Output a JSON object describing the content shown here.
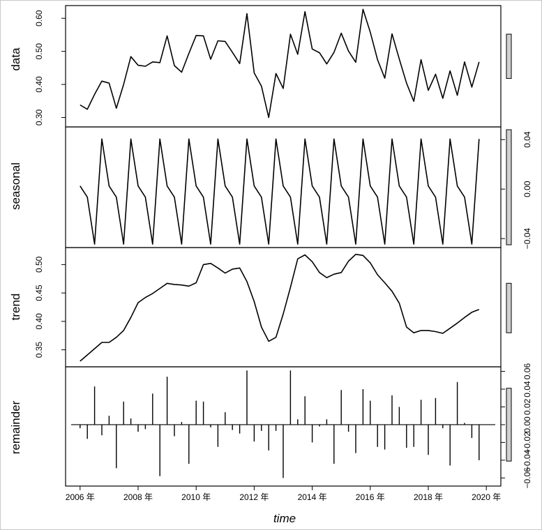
{
  "chart_data": {
    "type": "line",
    "xlabel": "time",
    "x_ticks": [
      "2006 年",
      "2008 年",
      "2010 年",
      "2012 年",
      "2014 年",
      "2016 年",
      "2018 年",
      "2020 年"
    ],
    "x_tick_values": [
      2006,
      2008,
      2010,
      2012,
      2014,
      2016,
      2018,
      2020
    ],
    "xlim": [
      2005.5,
      2020.5
    ],
    "t_start": 2006.0,
    "t_step": 0.25,
    "panels": [
      {
        "name": "data",
        "tick_side": "left",
        "ylim": [
          0.28,
          0.63
        ],
        "ticks": [
          0.3,
          0.4,
          0.5,
          0.6
        ],
        "tick_labels": [
          "0.30",
          "0.40",
          "0.50",
          "0.60"
        ],
        "style": "line",
        "values": [
          0.338,
          0.325,
          0.37,
          0.41,
          0.404,
          0.328,
          0.4,
          0.484,
          0.458,
          0.455,
          0.468,
          0.466,
          0.547,
          0.457,
          0.437,
          0.494,
          0.548,
          0.547,
          0.476,
          0.532,
          0.53,
          0.497,
          0.463,
          0.614,
          0.435,
          0.395,
          0.3,
          0.433,
          0.388,
          0.552,
          0.491,
          0.62,
          0.507,
          0.496,
          0.462,
          0.497,
          0.555,
          0.501,
          0.467,
          0.627,
          0.558,
          0.475,
          0.419,
          0.553,
          0.477,
          0.404,
          0.349,
          0.475,
          0.382,
          0.431,
          0.358,
          0.441,
          0.367,
          0.468,
          0.392,
          0.468
        ]
      },
      {
        "name": "seasonal",
        "tick_side": "right",
        "ylim": [
          -0.045,
          0.048
        ],
        "ticks": [
          -0.04,
          0.0,
          0.04
        ],
        "tick_labels": [
          "−0.04",
          "0.00",
          "0.04"
        ],
        "style": "line",
        "pattern": [
          0.0025,
          -0.0065,
          -0.0445,
          0.0405
        ],
        "values": []
      },
      {
        "name": "trend",
        "tick_side": "left",
        "ylim": [
          0.325,
          0.525
        ],
        "ticks": [
          0.35,
          0.4,
          0.45,
          0.5
        ],
        "tick_labels": [
          "0.35",
          "0.40",
          "0.45",
          "0.50"
        ],
        "style": "line",
        "values": [
          0.33,
          0.341,
          0.352,
          0.363,
          0.363,
          0.372,
          0.384,
          0.407,
          0.433,
          0.442,
          0.449,
          0.458,
          0.467,
          0.465,
          0.464,
          0.462,
          0.468,
          0.5,
          0.502,
          0.494,
          0.485,
          0.492,
          0.494,
          0.47,
          0.435,
          0.39,
          0.365,
          0.372,
          0.413,
          0.46,
          0.51,
          0.517,
          0.505,
          0.486,
          0.477,
          0.483,
          0.486,
          0.506,
          0.518,
          0.516,
          0.503,
          0.482,
          0.468,
          0.453,
          0.432,
          0.39,
          0.38,
          0.384,
          0.384,
          0.382,
          0.379,
          0.388,
          0.397,
          0.407,
          0.416,
          0.421
        ]
      },
      {
        "name": "remainder",
        "tick_side": "right",
        "ylim": [
          -0.066,
          0.062
        ],
        "ticks": [
          -0.06,
          -0.04,
          -0.02,
          0.0,
          0.02,
          0.04,
          0.06
        ],
        "tick_labels": [
          "−0.06",
          "−0.04",
          "−0.02",
          "0.00",
          "0.02",
          "0.04",
          "0.06"
        ],
        "style": "spikes",
        "values": [
          -0.004,
          -0.016,
          0.043,
          -0.012,
          0.01,
          -0.049,
          0.026,
          0.007,
          -0.008,
          -0.005,
          0.035,
          -0.058,
          0.054,
          -0.013,
          0.003,
          -0.044,
          0.027,
          0.026,
          -0.003,
          -0.025,
          0.014,
          -0.006,
          -0.01,
          0.061,
          -0.019,
          -0.007,
          -0.029,
          -0.007,
          -0.06,
          0.061,
          0.006,
          0.032,
          -0.02,
          -0.002,
          0.006,
          -0.044,
          0.039,
          -0.008,
          -0.032,
          0.04,
          0.027,
          -0.025,
          -0.028,
          0.033,
          0.02,
          -0.026,
          -0.025,
          0.028,
          -0.034,
          0.03,
          -0.004,
          -0.046,
          0.048,
          0.002,
          -0.015,
          -0.04
        ]
      }
    ],
    "range_bars": [
      {
        "panel": "data",
        "ymin": 0.418,
        "ymax": 0.552
      },
      {
        "panel": "seasonal",
        "ymin": -0.045,
        "ymax": 0.048
      },
      {
        "panel": "trend",
        "ymin": 0.38,
        "ymax": 0.467
      },
      {
        "panel": "remainder",
        "ymin": -0.041,
        "ymax": 0.041
      }
    ]
  }
}
